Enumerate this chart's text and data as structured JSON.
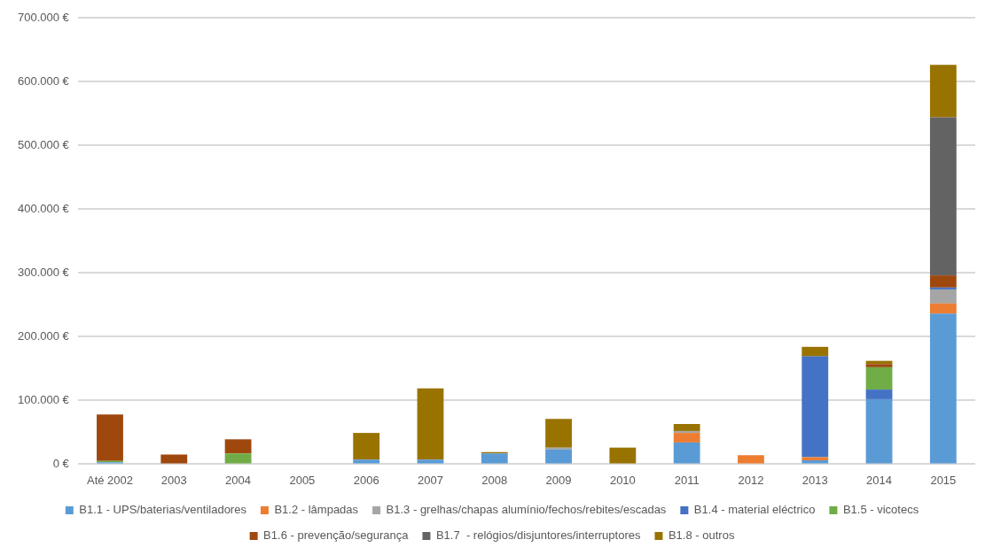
{
  "chart_data": {
    "type": "bar",
    "stacked": true,
    "categories": [
      "Até 2002",
      "2003",
      "2004",
      "2005",
      "2006",
      "2007",
      "2008",
      "2009",
      "2010",
      "2011",
      "2012",
      "2013",
      "2014",
      "2015"
    ],
    "series": [
      {
        "name": "B1.1 - UPS/baterias/ventiladores",
        "color": "#5b9bd5",
        "values": [
          3,
          null,
          null,
          null,
          7,
          7,
          17,
          23,
          null,
          34,
          null,
          6,
          102,
          236
        ]
      },
      {
        "name": "B1.2 - lâmpadas",
        "color": "#ed7d31",
        "values": [
          null,
          null,
          null,
          null,
          null,
          null,
          null,
          null,
          null,
          15,
          14,
          5,
          null,
          16
        ]
      },
      {
        "name": "B1.3 - grelhas/chapas alumínio/fechos/rebites/escadas",
        "color": "#a5a5a5",
        "values": [
          null,
          null,
          null,
          null,
          null,
          null,
          null,
          3,
          null,
          3,
          null,
          null,
          null,
          22
        ]
      },
      {
        "name": "B1.4 - material eléctrico",
        "color": "#4472c4",
        "values": [
          null,
          null,
          null,
          null,
          null,
          null,
          null,
          null,
          null,
          null,
          null,
          158,
          15,
          3
        ]
      },
      {
        "name": "B1.5 - vicotecs",
        "color": "#70ad47",
        "values": [
          2,
          null,
          17,
          null,
          null,
          null,
          null,
          null,
          null,
          null,
          null,
          null,
          35,
          null
        ]
      },
      {
        "name": "B1.6 - prevenção/segurança",
        "color": "#9e480e",
        "values": [
          73,
          15,
          22,
          null,
          null,
          null,
          null,
          null,
          null,
          null,
          null,
          null,
          5,
          19
        ]
      },
      {
        "name": "B1.7  - relógios/disjuntores/interruptores",
        "color": "#636363",
        "values": [
          null,
          null,
          null,
          null,
          null,
          null,
          null,
          null,
          null,
          null,
          null,
          null,
          null,
          248
        ]
      },
      {
        "name": "B1.8 - outros",
        "color": "#997300",
        "values": [
          null,
          null,
          null,
          null,
          42,
          112,
          2,
          45,
          26,
          11,
          null,
          15,
          5,
          82
        ]
      }
    ],
    "ylim": [
      0,
      700
    ],
    "yticks": [
      {
        "value": 0,
        "label": "0 €"
      },
      {
        "value": 100,
        "label": "100.000 €"
      },
      {
        "value": 200,
        "label": "200.000 €"
      },
      {
        "value": 300,
        "label": "300.000 €"
      },
      {
        "value": 400,
        "label": "400.000 €"
      },
      {
        "value": 500,
        "label": "500.000 €"
      },
      {
        "value": 600,
        "label": "600.000 €"
      },
      {
        "value": 700,
        "label": "700.000 €"
      }
    ],
    "grid": "y",
    "legend": "bottom"
  }
}
